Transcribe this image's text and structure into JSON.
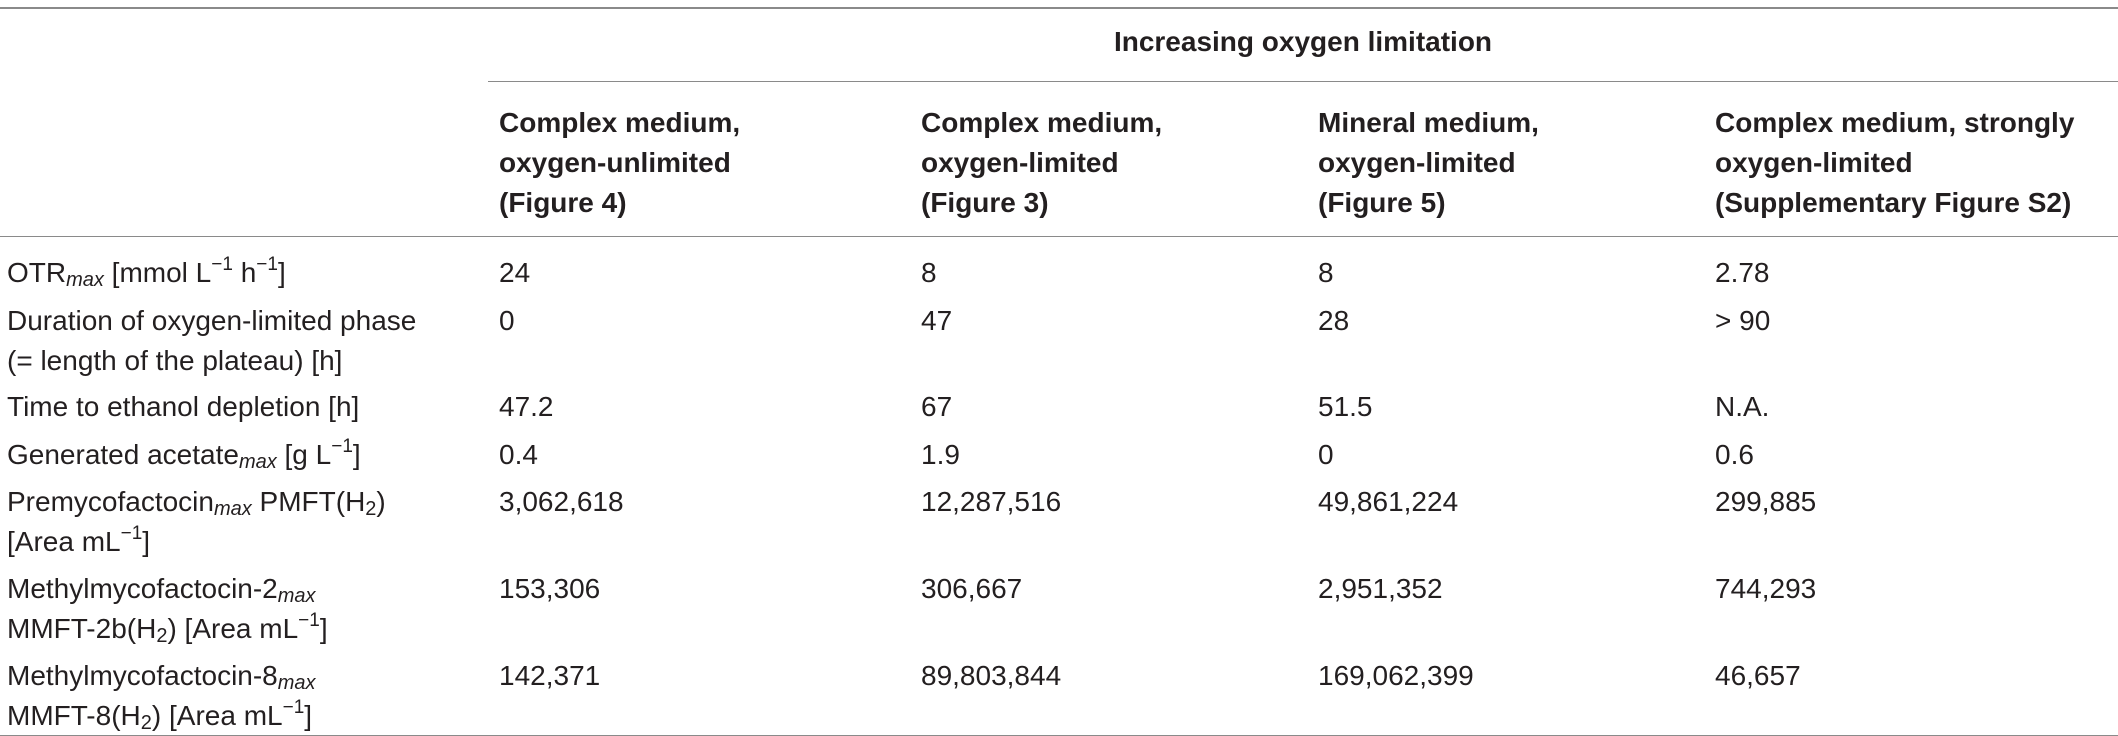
{
  "group_header": "Increasing oxygen limitation",
  "columns": [
    {
      "line1": "Complex medium,",
      "line2": "oxygen-unlimited",
      "line3": "(Figure 4)"
    },
    {
      "line1": "Complex medium,",
      "line2": "oxygen-limited",
      "line3": "(Figure 3)"
    },
    {
      "line1": "Mineral medium,",
      "line2": "oxygen-limited",
      "line3": "(Figure 5)"
    },
    {
      "line1": "Complex medium, strongly",
      "line2": "oxygen-limited",
      "line3": "(Supplementary Figure S2)"
    }
  ],
  "rows": [
    {
      "label": {
        "a": "OTR",
        "sub": "max",
        "b": " [mmol L",
        "sup1": "−1",
        "c": " h",
        "sup2": "−1",
        "d": "]"
      },
      "values": [
        "24",
        "8",
        "8",
        "2.78"
      ]
    },
    {
      "label": {
        "line1": "Duration of oxygen-limited phase",
        "line2": "(= length of the plateau) [h]"
      },
      "values": [
        "0",
        "47",
        "28",
        "> 90"
      ]
    },
    {
      "label": {
        "line1": "Time to ethanol depletion [h]"
      },
      "values": [
        "47.2",
        "67",
        "51.5",
        "N.A."
      ]
    },
    {
      "label": {
        "a": "Generated acetate",
        "sub": "max",
        "b": " [g L",
        "sup": "−1",
        "c": "]"
      },
      "values": [
        "0.4",
        "1.9",
        "0",
        "0.6"
      ]
    },
    {
      "label": {
        "a": "Premycofactocin",
        "sub": "max",
        "b": " PMFT(H",
        "sub2": "2",
        "c": ")",
        "line2a": "[Area mL",
        "sup": "−1",
        "line2b": "]"
      },
      "values": [
        "3,062,618",
        "12,287,516",
        "49,861,224",
        "299,885"
      ]
    },
    {
      "label": {
        "a": "Methylmycofactocin-2",
        "sub": "max",
        "line2a": "MMFT-2b(H",
        "sub2": "2",
        "line2b": ") [Area mL",
        "sup": "−1",
        "line2c": "]"
      },
      "values": [
        "153,306",
        "306,667",
        "2,951,352",
        "744,293"
      ]
    },
    {
      "label": {
        "a": "Methylmycofactocin-8",
        "sub": "max",
        "line2a": "MMFT-8(H",
        "sub2": "2",
        "line2b": ") [Area mL",
        "sup": "−1",
        "line2c": "]"
      },
      "values": [
        "142,371",
        "89,803,844",
        "169,062,399",
        "46,657"
      ]
    }
  ]
}
